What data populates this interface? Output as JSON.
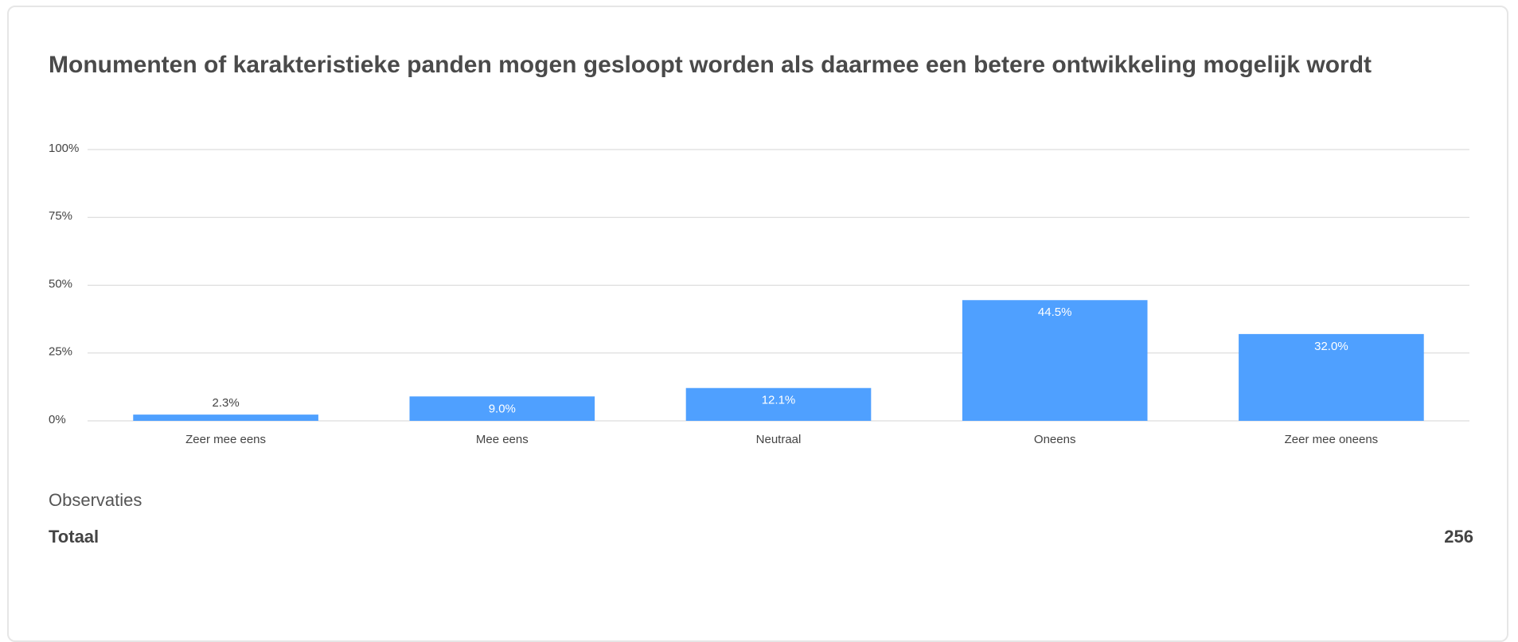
{
  "chart_data": {
    "type": "bar",
    "title": "Monumenten of karakteristieke panden mogen gesloopt worden als daarmee een betere ontwikkeling mogelijk wordt",
    "categories": [
      "Zeer mee eens",
      "Mee eens",
      "Neutraal",
      "Oneens",
      "Zeer mee oneens"
    ],
    "values": [
      2.3,
      9.0,
      12.1,
      44.5,
      32.0
    ],
    "value_labels": [
      "2.3%",
      "9.0%",
      "12.1%",
      "44.5%",
      "32.0%"
    ],
    "color": "#4fa0ff",
    "ylim": [
      0,
      100
    ],
    "yticks": [
      {
        "value": 0,
        "label": "0%"
      },
      {
        "value": 25,
        "label": "25%"
      },
      {
        "value": 50,
        "label": "50%"
      },
      {
        "value": 75,
        "label": "75%"
      },
      {
        "value": 100,
        "label": "100%"
      }
    ],
    "grid": true
  },
  "observations": {
    "heading": "Observaties",
    "total_label": "Totaal",
    "total": 256
  }
}
